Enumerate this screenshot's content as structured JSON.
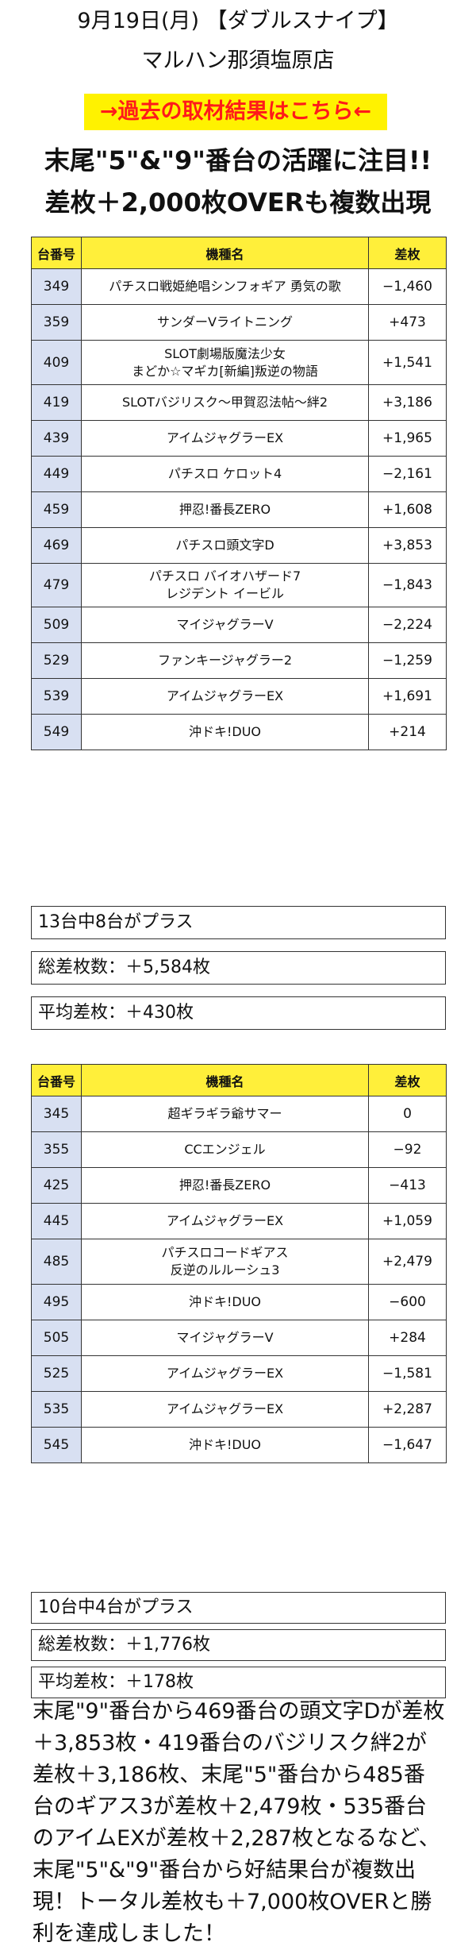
{
  "header": {
    "line1": "9月19日(月) 【ダブルスナイプ】",
    "line2": "マルハン那須塩原店",
    "link": "→過去の取材結果はこちら←",
    "headline1": "末尾\"5\"&\"9\"番台の活躍に注目!!",
    "headline2": "差枚＋2,000枚OVERも複数出現"
  },
  "table_header": {
    "num": "台番号",
    "name": "機種名",
    "diff": "差枚"
  },
  "table1": [
    {
      "num": "349",
      "name": "パチスロ戦姫絶唱シンフォギア 勇気の歌",
      "diff": "−1,460"
    },
    {
      "num": "359",
      "name": "サンダーVライトニング",
      "diff": "+473"
    },
    {
      "num": "409",
      "name": "SLOT劇場版魔法少女\nまどか☆マギカ[新編]叛逆の物語",
      "diff": "+1,541"
    },
    {
      "num": "419",
      "name": "SLOTバジリスク～甲賀忍法帖～絆2",
      "diff": "+3,186"
    },
    {
      "num": "439",
      "name": "アイムジャグラーEX",
      "diff": "+1,965"
    },
    {
      "num": "449",
      "name": "パチスロ ケロット4",
      "diff": "−2,161"
    },
    {
      "num": "459",
      "name": "押忍!番長ZERO",
      "diff": "+1,608"
    },
    {
      "num": "469",
      "name": "パチスロ頭文字D",
      "diff": "+3,853"
    },
    {
      "num": "479",
      "name": "パチスロ バイオハザード7\nレジデント イービル",
      "diff": "−1,843"
    },
    {
      "num": "509",
      "name": "マイジャグラーV",
      "diff": "−2,224"
    },
    {
      "num": "529",
      "name": "ファンキージャグラー2",
      "diff": "−1,259"
    },
    {
      "num": "539",
      "name": "アイムジャグラーEX",
      "diff": "+1,691"
    },
    {
      "num": "549",
      "name": "沖ドキ!DUO",
      "diff": "+214"
    }
  ],
  "stats1": {
    "plus": "13台中8台がプラス",
    "total": "総差枚数：＋5,584枚",
    "avg": "平均差枚：＋430枚"
  },
  "table2": [
    {
      "num": "345",
      "name": "超ギラギラ爺サマー",
      "diff": "0"
    },
    {
      "num": "355",
      "name": "CCエンジェル",
      "diff": "−92"
    },
    {
      "num": "425",
      "name": "押忍!番長ZERO",
      "diff": "−413"
    },
    {
      "num": "445",
      "name": "アイムジャグラーEX",
      "diff": "+1,059"
    },
    {
      "num": "485",
      "name": "パチスロコードギアス\n反逆のルルーシュ3",
      "diff": "+2,479"
    },
    {
      "num": "495",
      "name": "沖ドキ!DUO",
      "diff": "−600"
    },
    {
      "num": "505",
      "name": "マイジャグラーV",
      "diff": "+284"
    },
    {
      "num": "525",
      "name": "アイムジャグラーEX",
      "diff": "−1,581"
    },
    {
      "num": "535",
      "name": "アイムジャグラーEX",
      "diff": "+2,287"
    },
    {
      "num": "545",
      "name": "沖ドキ!DUO",
      "diff": "−1,647"
    }
  ],
  "stats2": {
    "plus": "10台中4台がプラス",
    "total": "総差枚数：＋1,776枚",
    "avg": "平均差枚：＋178枚"
  },
  "summary": "末尾\"9\"番台から469番台の頭文字Dが差枚＋3,853枚・419番台のバジリスク絆2が差枚＋3,186枚、末尾\"5\"番台から485番台のギアス3が差枚＋2,479枚・535番台のアイムEXが差枚＋2,287枚となるなど、末尾\"5\"&\"9\"番台から好結果台が複数出現！トータル差枚も＋7,000枚OVERと勝利を達成しました！",
  "colors": {
    "banner_bg": "#fff200",
    "banner_text": "#ff1a1a",
    "header_bg": "#ffef3a",
    "num_bg": "#d8e0f2"
  }
}
